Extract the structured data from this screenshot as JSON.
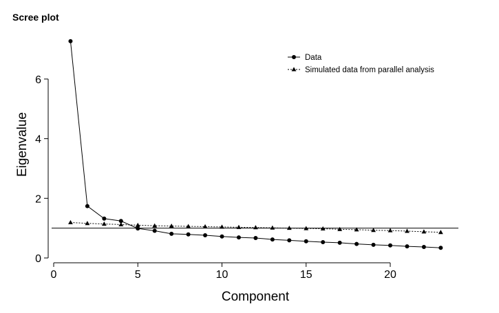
{
  "title": "Scree plot",
  "chart_data": {
    "type": "line",
    "title": "Scree plot",
    "xlabel": "Component",
    "ylabel": "Eigenvalue",
    "xlim": [
      0,
      24
    ],
    "ylim": [
      0,
      7.5
    ],
    "x_ticks": [
      0,
      5,
      10,
      15,
      20
    ],
    "y_ticks": [
      0,
      2,
      4,
      6
    ],
    "reference_line": 1,
    "legend_position": "top-right",
    "x": [
      1,
      2,
      3,
      4,
      5,
      6,
      7,
      8,
      9,
      10,
      11,
      12,
      13,
      14,
      15,
      16,
      17,
      18,
      19,
      20,
      21,
      22,
      23
    ],
    "series": [
      {
        "name": "Data",
        "marker": "circle",
        "line_style": "solid",
        "values": [
          7.27,
          1.74,
          1.32,
          1.24,
          0.99,
          0.91,
          0.81,
          0.79,
          0.76,
          0.72,
          0.69,
          0.67,
          0.62,
          0.59,
          0.56,
          0.53,
          0.51,
          0.47,
          0.44,
          0.42,
          0.39,
          0.37,
          0.34
        ]
      },
      {
        "name": "Simulated data from parallel analysis",
        "marker": "triangle",
        "line_style": "dotted",
        "values": [
          1.19,
          1.16,
          1.14,
          1.12,
          1.1,
          1.08,
          1.07,
          1.06,
          1.05,
          1.04,
          1.03,
          1.02,
          1.01,
          1.0,
          0.99,
          0.98,
          0.96,
          0.95,
          0.93,
          0.92,
          0.9,
          0.88,
          0.86
        ]
      }
    ]
  }
}
